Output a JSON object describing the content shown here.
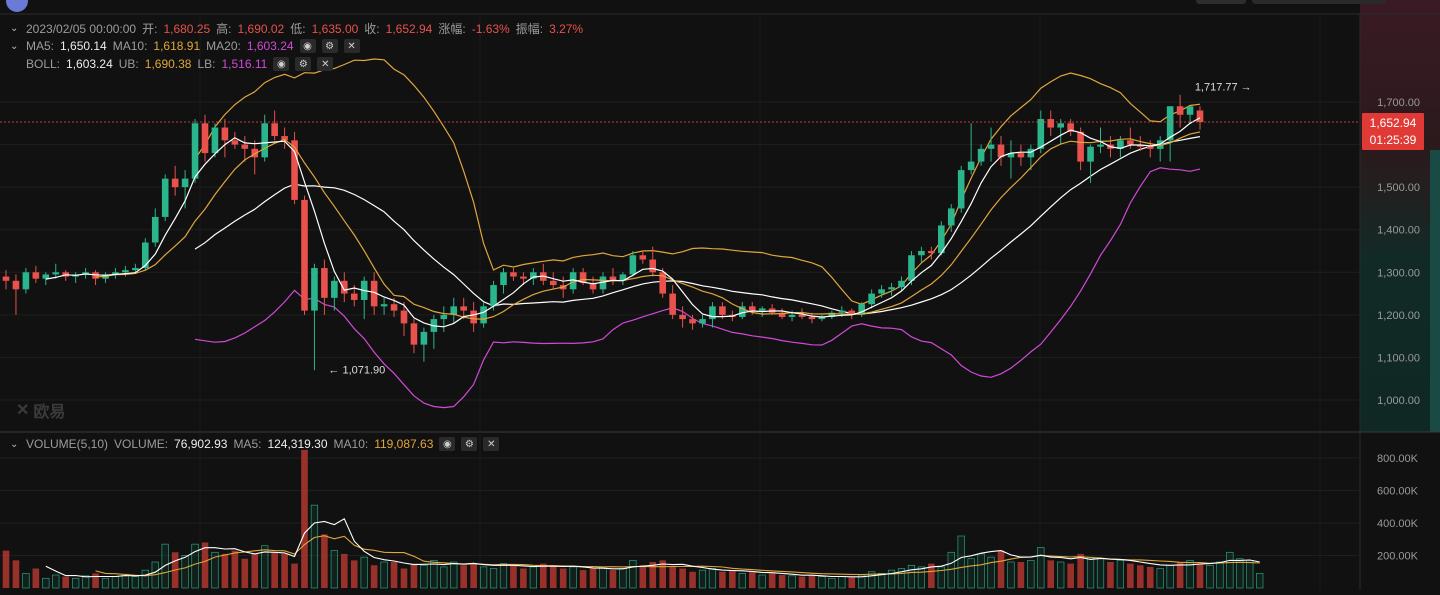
{
  "header": {
    "datetime": "2023/02/05 00:00:00",
    "open_label": "开:",
    "open": "1,680.25",
    "high_label": "高:",
    "high": "1,690.02",
    "low_label": "低:",
    "low": "1,635.00",
    "close_label": "收:",
    "close": "1,652.94",
    "change_label": "涨幅:",
    "change": "-1.63%",
    "amplitude_label": "振幅:",
    "amplitude": "3.27%"
  },
  "ma_legend": {
    "ma5_label": "MA5:",
    "ma5": "1,650.14",
    "ma10_label": "MA10:",
    "ma10": "1,618.91",
    "ma20_label": "MA20:",
    "ma20": "1,603.24"
  },
  "boll_legend": {
    "boll_label": "BOLL:",
    "boll": "1,603.24",
    "ub_label": "UB:",
    "ub": "1,690.38",
    "lb_label": "LB:",
    "lb": "1,516.11"
  },
  "volume_legend": {
    "title": "VOLUME(5,10)",
    "volume_label": "VOLUME:",
    "volume": "76,902.93",
    "ma5_label": "MA5:",
    "ma5": "124,319.30",
    "ma10_label": "MA10:",
    "ma10": "119,087.63"
  },
  "price_tag": {
    "price": "1,652.94",
    "countdown": "01:25:39"
  },
  "watermark": "欧易",
  "icons": {
    "visible": "eye-icon",
    "settings": "gear-icon",
    "close": "close-icon",
    "collapse": "chevron-down-icon",
    "watermark_logo": "okx-logo-icon"
  },
  "colors": {
    "up": "#2bb58c",
    "down": "#e8514c",
    "ma5": "#ffffff",
    "ma10": "#e0a63b",
    "boll_mid": "#ffffff",
    "boll_up": "#e0a63b",
    "boll_low": "#d04ad6",
    "vol_ma5": "#ffffff",
    "vol_ma10": "#e0a63b",
    "background": "#111111"
  },
  "chart_data": [
    {
      "type": "candlestick",
      "y_axis_ticks": [
        "1,700.00",
        "1,600.00",
        "1,500.00",
        "1,400.00",
        "1,300.00",
        "1,200.00",
        "1,100.00",
        "1,000.00"
      ],
      "y_ticks_values": [
        1700,
        1600,
        1500,
        1400,
        1300,
        1200,
        1100,
        1000
      ],
      "ylim": [
        920,
        1900
      ],
      "annotations": [
        {
          "text": "1,717.77",
          "arrow": "right",
          "index": 126,
          "value": 1717.77
        },
        {
          "text": "1,071.90",
          "arrow": "left",
          "index": 32,
          "value": 1071.9
        }
      ],
      "current_price": 1652.94,
      "candles": [
        [
          1290,
          1305,
          1260,
          1280
        ],
        [
          1280,
          1295,
          1200,
          1260
        ],
        [
          1260,
          1310,
          1250,
          1300
        ],
        [
          1300,
          1315,
          1275,
          1285
        ],
        [
          1285,
          1300,
          1270,
          1295
        ],
        [
          1295,
          1320,
          1285,
          1300
        ],
        [
          1300,
          1305,
          1280,
          1290
        ],
        [
          1290,
          1300,
          1275,
          1295
        ],
        [
          1295,
          1310,
          1285,
          1300
        ],
        [
          1300,
          1305,
          1270,
          1285
        ],
        [
          1285,
          1300,
          1275,
          1295
        ],
        [
          1295,
          1310,
          1285,
          1300
        ],
        [
          1300,
          1315,
          1290,
          1305
        ],
        [
          1305,
          1320,
          1300,
          1310
        ],
        [
          1310,
          1380,
          1305,
          1370
        ],
        [
          1370,
          1450,
          1360,
          1430
        ],
        [
          1430,
          1530,
          1420,
          1520
        ],
        [
          1520,
          1550,
          1480,
          1500
        ],
        [
          1500,
          1540,
          1450,
          1520
        ],
        [
          1520,
          1660,
          1510,
          1650
        ],
        [
          1650,
          1670,
          1560,
          1580
        ],
        [
          1580,
          1650,
          1570,
          1640
        ],
        [
          1640,
          1660,
          1570,
          1610
        ],
        [
          1610,
          1630,
          1590,
          1600
        ],
        [
          1600,
          1620,
          1560,
          1590
        ],
        [
          1590,
          1610,
          1530,
          1570
        ],
        [
          1570,
          1670,
          1560,
          1650
        ],
        [
          1650,
          1680,
          1610,
          1620
        ],
        [
          1620,
          1640,
          1590,
          1610
        ],
        [
          1610,
          1630,
          1460,
          1470
        ],
        [
          1470,
          1480,
          1200,
          1210
        ],
        [
          1210,
          1320,
          1070,
          1310
        ],
        [
          1310,
          1330,
          1200,
          1240
        ],
        [
          1240,
          1290,
          1210,
          1280
        ],
        [
          1280,
          1300,
          1230,
          1250
        ],
        [
          1250,
          1270,
          1220,
          1235
        ],
        [
          1235,
          1290,
          1190,
          1280
        ],
        [
          1280,
          1300,
          1200,
          1220
        ],
        [
          1220,
          1240,
          1200,
          1225
        ],
        [
          1225,
          1240,
          1195,
          1210
        ],
        [
          1210,
          1230,
          1150,
          1180
        ],
        [
          1180,
          1190,
          1110,
          1130
        ],
        [
          1130,
          1170,
          1090,
          1160
        ],
        [
          1160,
          1200,
          1120,
          1190
        ],
        [
          1190,
          1220,
          1160,
          1200
        ],
        [
          1200,
          1240,
          1180,
          1220
        ],
        [
          1220,
          1240,
          1190,
          1210
        ],
        [
          1210,
          1230,
          1160,
          1180
        ],
        [
          1180,
          1230,
          1170,
          1220
        ],
        [
          1220,
          1280,
          1210,
          1270
        ],
        [
          1270,
          1310,
          1250,
          1300
        ],
        [
          1300,
          1310,
          1280,
          1290
        ],
        [
          1290,
          1300,
          1270,
          1285
        ],
        [
          1285,
          1310,
          1270,
          1300
        ],
        [
          1300,
          1320,
          1270,
          1280
        ],
        [
          1280,
          1300,
          1260,
          1270
        ],
        [
          1270,
          1290,
          1240,
          1260
        ],
        [
          1260,
          1310,
          1250,
          1300
        ],
        [
          1300,
          1310,
          1270,
          1275
        ],
        [
          1275,
          1290,
          1250,
          1260
        ],
        [
          1260,
          1300,
          1250,
          1290
        ],
        [
          1290,
          1310,
          1270,
          1280
        ],
        [
          1280,
          1300,
          1270,
          1295
        ],
        [
          1295,
          1350,
          1290,
          1340
        ],
        [
          1340,
          1350,
          1320,
          1330
        ],
        [
          1330,
          1360,
          1290,
          1300
        ],
        [
          1300,
          1310,
          1240,
          1250
        ],
        [
          1250,
          1270,
          1190,
          1200
        ],
        [
          1200,
          1220,
          1170,
          1190
        ],
        [
          1190,
          1200,
          1165,
          1180
        ],
        [
          1180,
          1200,
          1170,
          1190
        ],
        [
          1190,
          1230,
          1170,
          1220
        ],
        [
          1220,
          1230,
          1190,
          1200
        ],
        [
          1200,
          1210,
          1185,
          1195
        ],
        [
          1195,
          1230,
          1190,
          1220
        ],
        [
          1220,
          1230,
          1200,
          1210
        ],
        [
          1210,
          1220,
          1195,
          1215
        ],
        [
          1215,
          1225,
          1200,
          1205
        ],
        [
          1205,
          1215,
          1190,
          1195
        ],
        [
          1195,
          1210,
          1185,
          1200
        ],
        [
          1200,
          1215,
          1190,
          1195
        ],
        [
          1195,
          1205,
          1180,
          1190
        ],
        [
          1190,
          1200,
          1185,
          1195
        ],
        [
          1195,
          1210,
          1190,
          1205
        ],
        [
          1205,
          1220,
          1195,
          1210
        ],
        [
          1210,
          1215,
          1190,
          1200
        ],
        [
          1200,
          1230,
          1195,
          1225
        ],
        [
          1225,
          1260,
          1215,
          1250
        ],
        [
          1250,
          1270,
          1240,
          1260
        ],
        [
          1260,
          1275,
          1245,
          1265
        ],
        [
          1265,
          1290,
          1255,
          1280
        ],
        [
          1280,
          1350,
          1270,
          1340
        ],
        [
          1340,
          1360,
          1320,
          1350
        ],
        [
          1350,
          1360,
          1330,
          1345
        ],
        [
          1345,
          1420,
          1340,
          1410
        ],
        [
          1410,
          1460,
          1395,
          1450
        ],
        [
          1450,
          1550,
          1440,
          1540
        ],
        [
          1540,
          1650,
          1530,
          1560
        ],
        [
          1560,
          1600,
          1550,
          1590
        ],
        [
          1590,
          1640,
          1560,
          1600
        ],
        [
          1600,
          1620,
          1550,
          1570
        ],
        [
          1570,
          1610,
          1520,
          1580
        ],
        [
          1580,
          1600,
          1550,
          1570
        ],
        [
          1570,
          1600,
          1540,
          1590
        ],
        [
          1590,
          1680,
          1580,
          1660
        ],
        [
          1660,
          1680,
          1620,
          1640
        ],
        [
          1640,
          1660,
          1600,
          1650
        ],
        [
          1650,
          1660,
          1620,
          1630
        ],
        [
          1630,
          1640,
          1540,
          1560
        ],
        [
          1560,
          1600,
          1510,
          1595
        ],
        [
          1595,
          1640,
          1580,
          1600
        ],
        [
          1600,
          1620,
          1570,
          1590
        ],
        [
          1590,
          1620,
          1570,
          1610
        ],
        [
          1610,
          1640,
          1590,
          1600
        ],
        [
          1600,
          1620,
          1585,
          1595
        ],
        [
          1595,
          1610,
          1570,
          1590
        ],
        [
          1590,
          1620,
          1560,
          1610
        ],
        [
          1610,
          1690,
          1560,
          1690
        ],
        [
          1690,
          1717,
          1640,
          1670
        ],
        [
          1670,
          1690,
          1650,
          1690
        ],
        [
          1680,
          1690,
          1635,
          1653
        ]
      ]
    },
    {
      "type": "bar",
      "y_axis_ticks": [
        "800.00K",
        "600.00K",
        "400.00K",
        "200.00K"
      ],
      "y_ticks_values": [
        800,
        600,
        400,
        200
      ],
      "unit": "K",
      "ylim": [
        0,
        860
      ],
      "values": [
        230,
        170,
        90,
        120,
        60,
        80,
        70,
        60,
        75,
        90,
        60,
        70,
        85,
        70,
        110,
        160,
        270,
        220,
        200,
        270,
        280,
        220,
        210,
        230,
        180,
        210,
        260,
        220,
        210,
        150,
        850,
        510,
        330,
        230,
        210,
        170,
        190,
        140,
        160,
        160,
        120,
        150,
        140,
        170,
        130,
        160,
        140,
        150,
        130,
        120,
        150,
        140,
        120,
        130,
        150,
        140,
        120,
        130,
        110,
        120,
        130,
        110,
        120,
        170,
        140,
        160,
        170,
        130,
        120,
        100,
        110,
        120,
        100,
        110,
        90,
        100,
        80,
        90,
        80,
        75,
        70,
        80,
        70,
        60,
        70,
        65,
        80,
        100,
        90,
        110,
        120,
        140,
        130,
        150,
        130,
        220,
        320,
        180,
        210,
        190,
        230,
        160,
        160,
        170,
        250,
        170,
        160,
        150,
        210,
        190,
        180,
        160,
        170,
        150,
        140,
        130,
        120,
        140,
        160,
        170,
        150,
        140,
        160,
        220,
        180,
        170,
        90
      ],
      "ma5": [
        null,
        null,
        null,
        null,
        134,
        104,
        76,
        77,
        69,
        71,
        71,
        71,
        76,
        75,
        79,
        97,
        139,
        167,
        189,
        224,
        248,
        248,
        240,
        242,
        222,
        210,
        222,
        220,
        216,
        194,
        338,
        400,
        409,
        390,
        426,
        288,
        226,
        188,
        174,
        166,
        154,
        144,
        146,
        148,
        144,
        150,
        148,
        152,
        144,
        140,
        140,
        140,
        136,
        132,
        134,
        134,
        132,
        134,
        130,
        124,
        122,
        118,
        118,
        130,
        134,
        140,
        148,
        144,
        146,
        134,
        126,
        116,
        110,
        108,
        106,
        102,
        96,
        94,
        90,
        85,
        79,
        79,
        75,
        71,
        71,
        69,
        69,
        75,
        82,
        89,
        100,
        112,
        118,
        130,
        134,
        152,
        188,
        198,
        214,
        224,
        230,
        204,
        190,
        190,
        202,
        190,
        188,
        180,
        188,
        176,
        182,
        178,
        176,
        170,
        160,
        150,
        142,
        140,
        142,
        142,
        148,
        150,
        156,
        170,
        170,
        172,
        160
      ],
      "ma10": [
        null,
        null,
        null,
        null,
        null,
        null,
        null,
        null,
        null,
        105,
        90,
        88,
        83,
        78,
        75,
        82,
        95,
        111,
        124,
        147,
        164,
        190,
        203,
        216,
        222,
        229,
        235,
        230,
        229,
        209,
        267,
        311,
        322,
        303,
        318,
        263,
        239,
        232,
        220,
        218,
        218,
        195,
        165,
        158,
        155,
        150,
        146,
        149,
        146,
        143,
        145,
        145,
        144,
        140,
        137,
        137,
        136,
        134,
        132,
        132,
        130,
        131,
        130,
        132,
        132,
        131,
        131,
        132,
        132,
        133,
        134,
        132,
        129,
        121,
        116,
        113,
        109,
        105,
        102,
        99,
        95,
        91,
        88,
        87,
        85,
        84,
        83,
        85,
        86,
        87,
        89,
        96,
        97,
        102,
        108,
        115,
        127,
        136,
        143,
        156,
        165,
        178,
        189,
        191,
        200,
        196,
        193,
        191,
        193,
        187,
        185,
        177,
        175,
        173,
        173,
        170,
        166,
        164,
        158,
        156,
        156,
        152,
        154,
        156,
        158,
        156,
        154
      ]
    }
  ]
}
